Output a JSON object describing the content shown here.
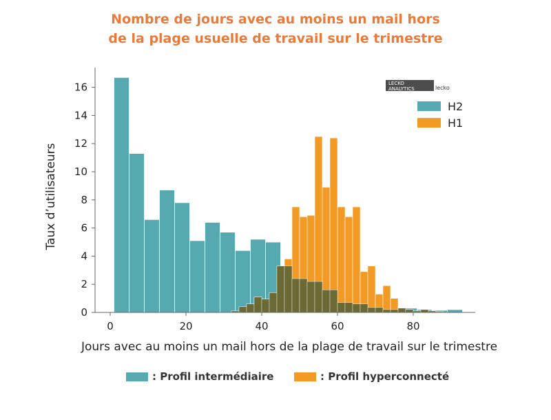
{
  "title_line1": "Nombre de jours avec au moins un mail hors",
  "title_line2": "de la plage usuelle de travail sur le trimestre",
  "logo": {
    "line1": "LECKO",
    "line2": "ANALYTICS",
    "side": "lecko"
  },
  "bottom_legend": {
    "h2_label": ": Profil intermédiaire",
    "h1_label": ": Profil hyperconnecté"
  },
  "colors": {
    "h2": "#56a9ae",
    "h1": "#f29a23",
    "overlap": "#6b6a35",
    "title": "#e87a3a"
  },
  "chart_data": {
    "type": "bar",
    "title": "Nombre de jours avec au moins un mail hors de la plage usuelle de travail sur le trimestre",
    "xlabel": "Jours avec au moins un mail hors de la plage de travail sur le trimestre",
    "ylabel": "Taux d’utilisateurs",
    "xlim": [
      -2,
      98
    ],
    "ylim": [
      0,
      17.5
    ],
    "xticks": [
      0,
      20,
      40,
      60,
      80
    ],
    "yticks": [
      0,
      2,
      4,
      6,
      8,
      10,
      12,
      14,
      16
    ],
    "legend_position": "top-right",
    "grid": false,
    "series": [
      {
        "name": "H2",
        "bin_width": 4,
        "bin_starts": [
          1,
          5,
          9,
          13,
          17,
          21,
          25,
          29,
          33,
          37,
          41,
          45,
          49,
          53,
          57,
          61,
          65,
          69,
          73,
          77,
          81,
          85,
          89
        ],
        "values": [
          16.7,
          11.3,
          6.6,
          8.7,
          7.8,
          5.1,
          6.4,
          5.7,
          4.4,
          5.2,
          5.0,
          3.3,
          2.4,
          2.2,
          1.6,
          0.7,
          0.6,
          0.35,
          0.2,
          0.3,
          0.2,
          0.15,
          0.2
        ]
      },
      {
        "name": "H1",
        "bin_width": 2,
        "bin_starts": [
          32,
          34,
          36,
          38,
          40,
          42,
          44,
          46,
          48,
          50,
          52,
          54,
          56,
          58,
          60,
          62,
          64,
          66,
          68,
          70,
          72,
          74,
          76,
          78,
          80,
          82,
          84,
          86
        ],
        "values": [
          0.1,
          0.4,
          0.6,
          1.1,
          0.95,
          1.4,
          3.3,
          3.8,
          7.5,
          6.8,
          6.9,
          12.5,
          8.9,
          12.4,
          7.5,
          6.8,
          7.5,
          2.9,
          3.3,
          1.3,
          1.9,
          1.0,
          0.3,
          0.2,
          0.1,
          0.2,
          0.1,
          0.05
        ]
      }
    ]
  }
}
